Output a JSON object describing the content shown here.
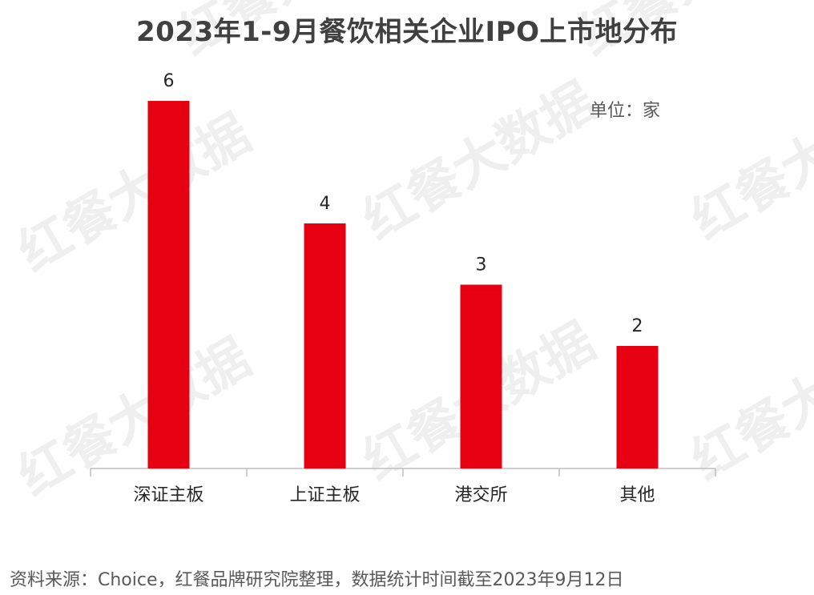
{
  "colors": {
    "bar": "#E60012",
    "axis": "#BFBFBF",
    "watermark": "#EFEFEF"
  },
  "watermark": {
    "text": "红餐大数据"
  },
  "footer": {
    "source": "资料来源：Choice，红餐品牌研究院整理，数据统计时间截至2023年9月12日"
  },
  "chart_data": {
    "type": "bar",
    "title": "2023年1-9月餐饮相关企业IPO上市地分布",
    "unit_label": "单位：家",
    "categories": [
      "深证主板",
      "上证主板",
      "港交所",
      "其他"
    ],
    "values": [
      6,
      4,
      3,
      2
    ],
    "ylim": [
      0,
      6
    ],
    "grid": false,
    "legend": "none"
  }
}
